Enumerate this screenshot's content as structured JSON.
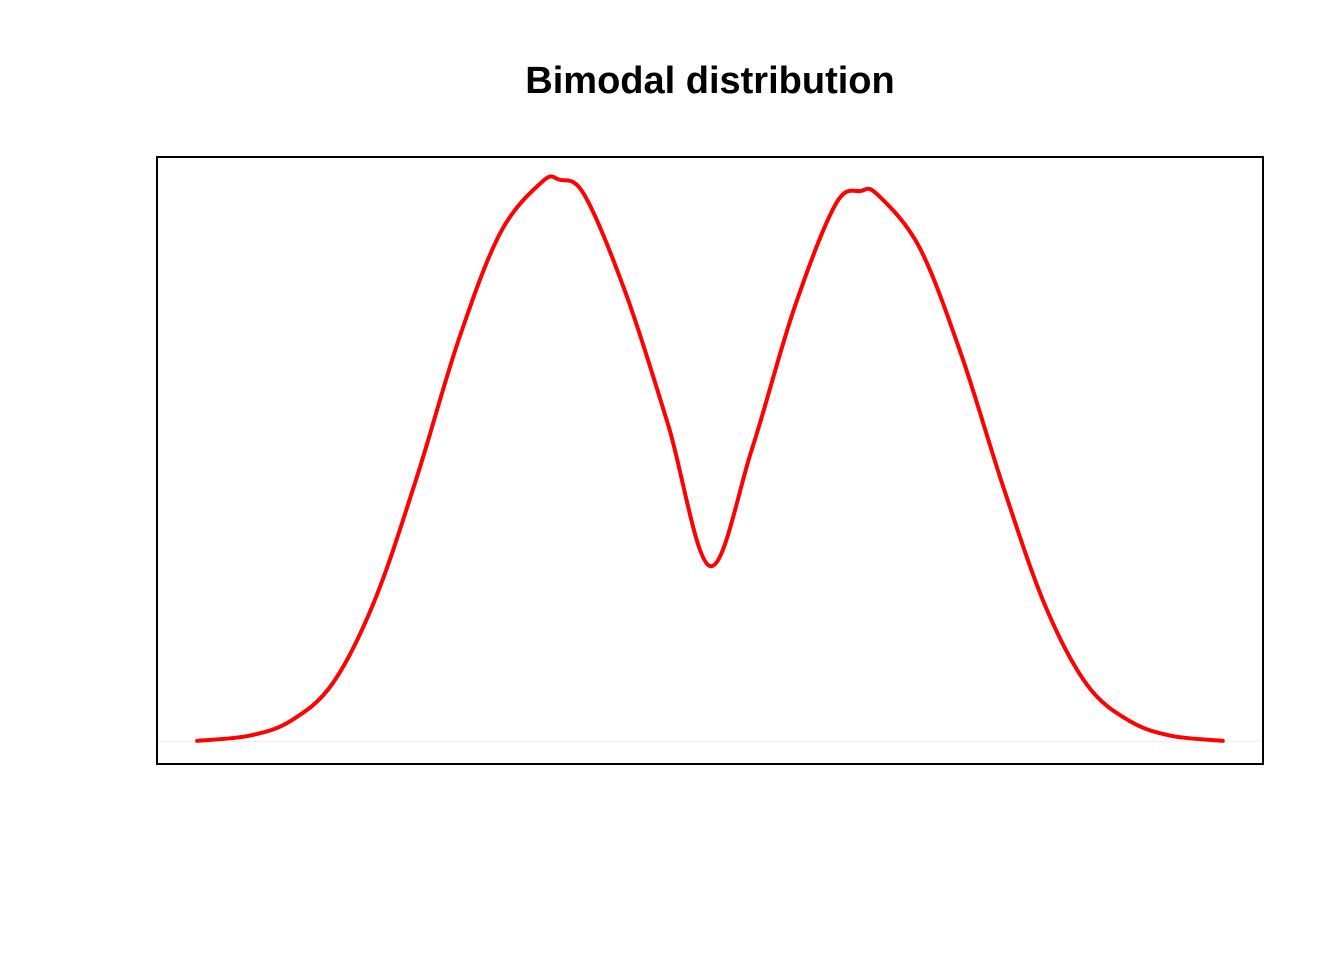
{
  "chart_data": {
    "type": "line",
    "title": "Bimodal distribution",
    "xlabel": "",
    "ylabel": "",
    "axes_shown": false,
    "grid": false,
    "legend": "none",
    "line_color": "#ff0000",
    "baseline_color": "#eeeeee",
    "xlim": [
      -3.3,
      3.3
    ],
    "ylim": [
      -0.012,
      0.31
    ],
    "series": [
      {
        "x": [
          -3.06,
          -2.75,
          -2.5,
          -2.25,
          -2.0,
          -1.75,
          -1.5,
          -1.25,
          -1.0,
          -0.9,
          -0.75,
          -0.5,
          -0.25,
          0.0,
          0.25,
          0.5,
          0.75,
          0.9,
          1.0,
          1.25,
          1.5,
          1.75,
          2.0,
          2.25,
          2.5,
          2.75,
          3.06
        ],
        "y": [
          0.0003,
          0.003,
          0.011,
          0.031,
          0.075,
          0.14,
          0.213,
          0.27,
          0.297,
          0.298,
          0.29,
          0.237,
          0.168,
          0.093,
          0.155,
          0.229,
          0.285,
          0.292,
          0.29,
          0.262,
          0.205,
          0.135,
          0.072,
          0.03,
          0.011,
          0.003,
          0.0003
        ]
      }
    ]
  }
}
